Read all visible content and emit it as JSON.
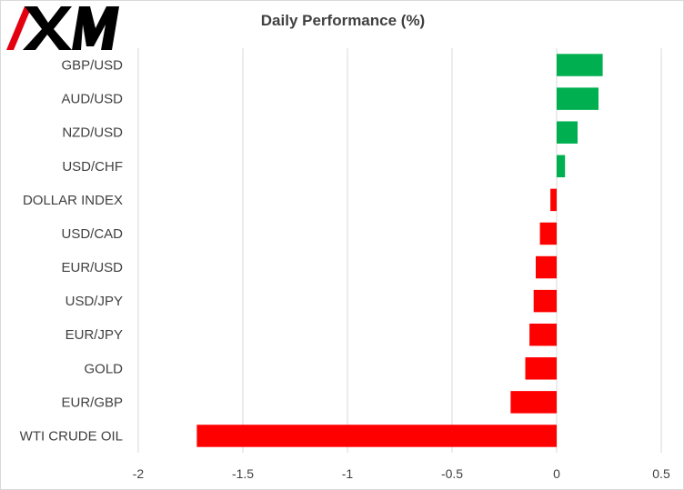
{
  "chart_data": {
    "type": "bar",
    "orientation": "horizontal",
    "title": "Daily Performance (%)",
    "xlabel": "",
    "ylabel": "",
    "categories": [
      "GBP/USD",
      "AUD/USD",
      "NZD/USD",
      "USD/CHF",
      "DOLLAR INDEX",
      "USD/CAD",
      "EUR/USD",
      "USD/JPY",
      "EUR/JPY",
      "GOLD",
      "EUR/GBP",
      "WTI CRUDE OIL"
    ],
    "values": [
      0.22,
      0.2,
      0.1,
      0.04,
      -0.03,
      -0.08,
      -0.1,
      -0.11,
      -0.13,
      -0.15,
      -0.22,
      -1.72
    ],
    "xlim": [
      -2,
      0.5
    ],
    "xticks": [
      "-2",
      "-1.5",
      "-1",
      "-0.5",
      "0",
      "0.5"
    ],
    "xtick_values": [
      -2,
      -1.5,
      -1,
      -0.5,
      0,
      0.5
    ],
    "grid": "vertical",
    "legend": "none",
    "colors": {
      "positive": "#00b050",
      "negative": "#ff0000",
      "grid": "#d9d9d9",
      "text": "#404040"
    }
  },
  "logo": {
    "text": "XM",
    "color": "#000000",
    "accent": "#e3000f"
  }
}
